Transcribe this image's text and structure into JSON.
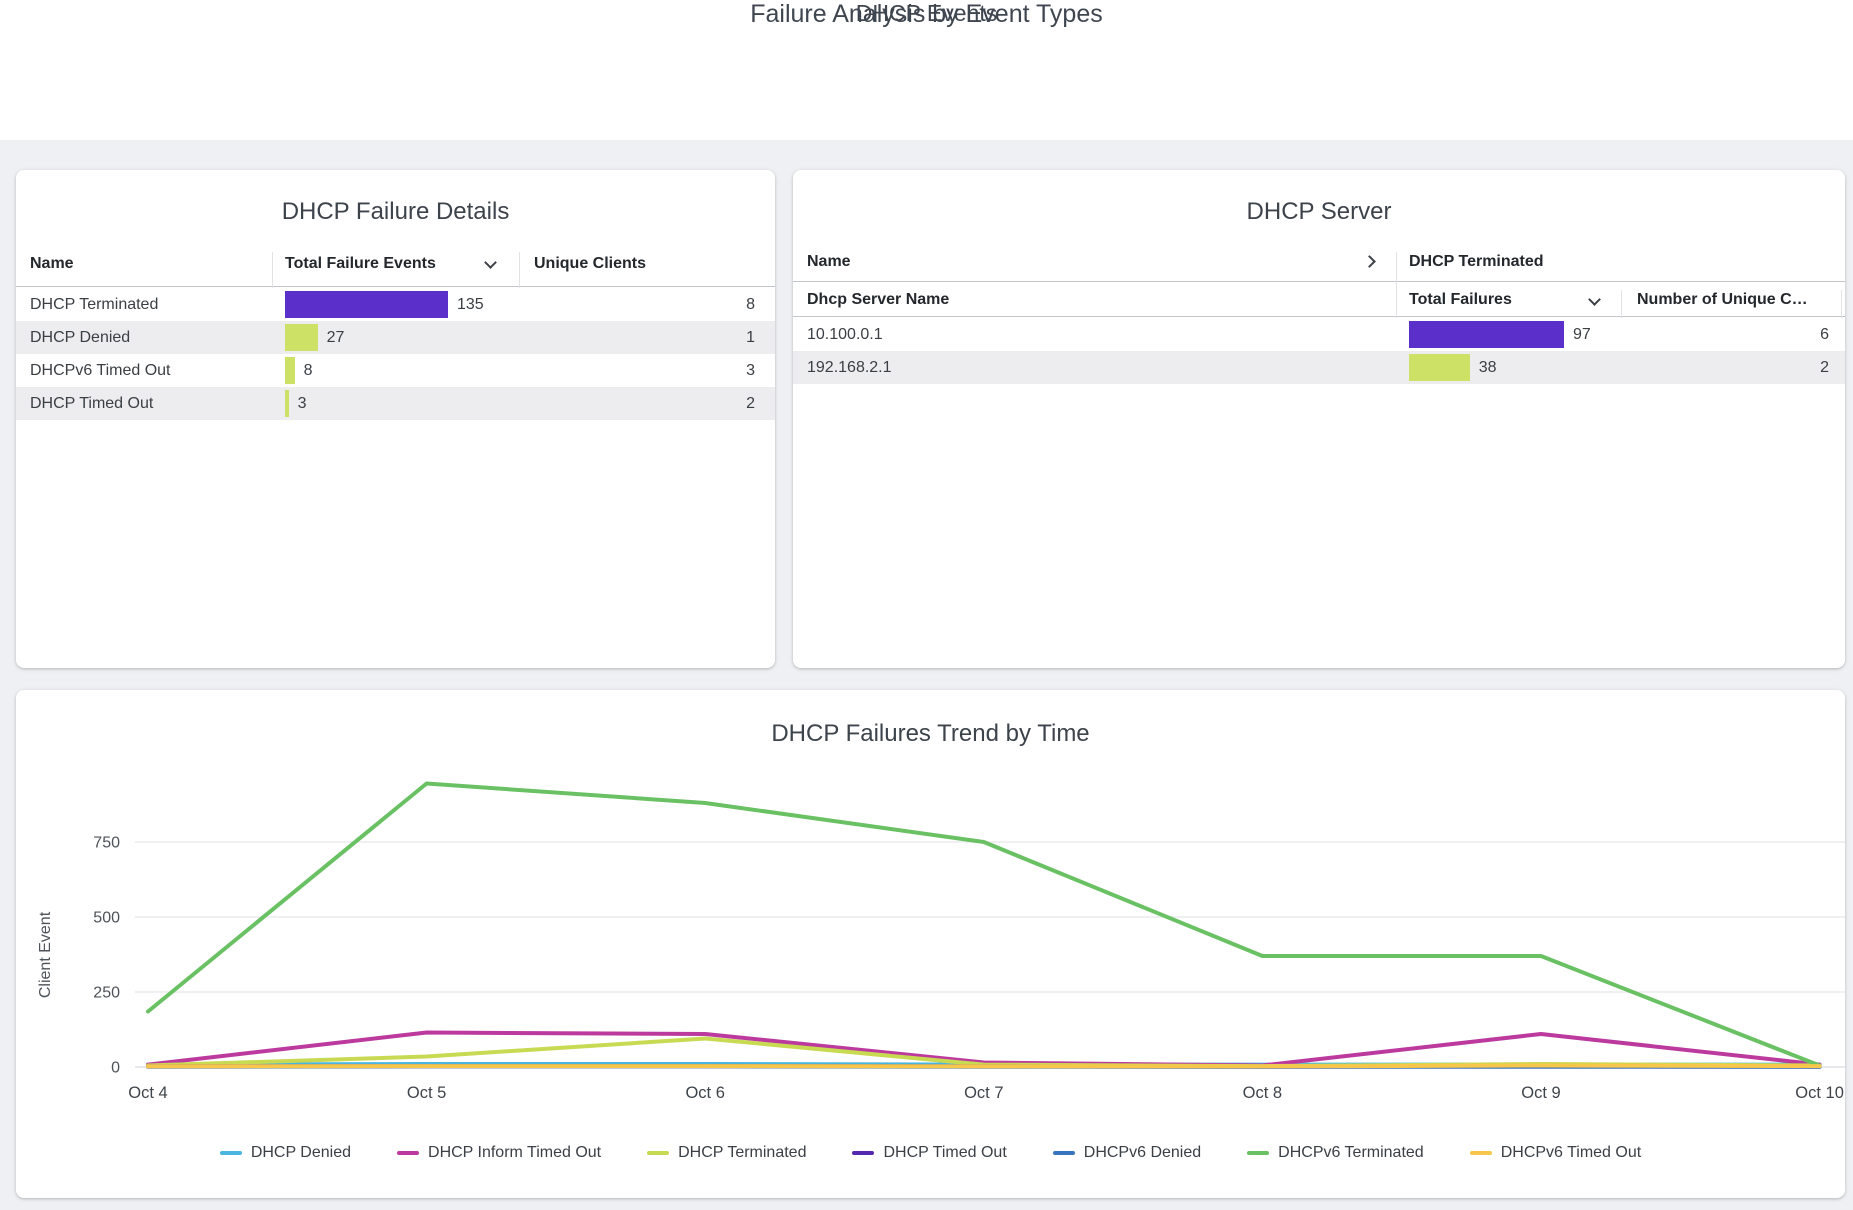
{
  "page": {
    "title": "Failure Analysis by Event Types",
    "section_title": "DHCP Events"
  },
  "colors": {
    "bar_high": "#5b2fc9",
    "bar_low": "#cde167",
    "page_background": "#eef0f3",
    "alt_row": "#ededf0"
  },
  "failure_details": {
    "title": "DHCP Failure Details",
    "col_name": "Name",
    "col_total": "Total Failure Events",
    "col_unique": "Unique Clients",
    "bar_scale_max": 135,
    "rows": [
      {
        "name": "DHCP Terminated",
        "total": 135,
        "unique": 8,
        "bar_color": "#5b2fc9"
      },
      {
        "name": "DHCP Denied",
        "total": 27,
        "unique": 1,
        "bar_color": "#cde167"
      },
      {
        "name": "DHCPv6 Timed Out",
        "total": 8,
        "unique": 3,
        "bar_color": "#cde167"
      },
      {
        "name": "DHCP Timed Out",
        "total": 3,
        "unique": 2,
        "bar_color": "#cde167"
      }
    ]
  },
  "dhcp_server": {
    "title": "DHCP Server",
    "col_name_group": "Name",
    "col_group": "DHCP Terminated",
    "col_server": "Dhcp Server Name",
    "col_total": "Total Failures",
    "col_unique": "Number of Unique C…",
    "bar_scale_max": 97,
    "rows": [
      {
        "name": "10.100.0.1",
        "total": 97,
        "unique": 6,
        "bar_color": "#5b2fc9"
      },
      {
        "name": "192.168.2.1",
        "total": 38,
        "unique": 2,
        "bar_color": "#cde167"
      }
    ]
  },
  "chart_data": {
    "type": "line",
    "title": "DHCP Failures Trend by Time",
    "ylabel": "Client Event",
    "xlabel": "",
    "x": [
      "Oct 4",
      "Oct 5",
      "Oct 6",
      "Oct 7",
      "Oct 8",
      "Oct 9",
      "Oct 10"
    ],
    "yticks": [
      0,
      250,
      500,
      750
    ],
    "ylim": [
      0,
      1000
    ],
    "grid": true,
    "legend_position": "bottom",
    "series": [
      {
        "name": "DHCP Denied",
        "color": "#49b6e0",
        "values": [
          8,
          10,
          10,
          8,
          8,
          8,
          8
        ]
      },
      {
        "name": "DHCP Inform Timed Out",
        "color": "#bc399e",
        "values": [
          8,
          115,
          110,
          15,
          5,
          110,
          8
        ]
      },
      {
        "name": "DHCP Terminated",
        "color": "#c8d952",
        "values": [
          5,
          35,
          95,
          8,
          3,
          10,
          5
        ]
      },
      {
        "name": "DHCP Timed Out",
        "color": "#5429af",
        "values": [
          2,
          3,
          3,
          2,
          1,
          2,
          1
        ]
      },
      {
        "name": "DHCPv6 Denied",
        "color": "#3a74c0",
        "values": [
          1,
          2,
          2,
          1,
          1,
          1,
          1
        ]
      },
      {
        "name": "DHCPv6 Terminated",
        "color": "#6ac164",
        "values": [
          185,
          945,
          880,
          750,
          370,
          370,
          5
        ]
      },
      {
        "name": "DHCPv6 Timed Out",
        "color": "#f6c74a",
        "values": [
          2,
          3,
          3,
          2,
          2,
          5,
          3
        ]
      }
    ]
  }
}
